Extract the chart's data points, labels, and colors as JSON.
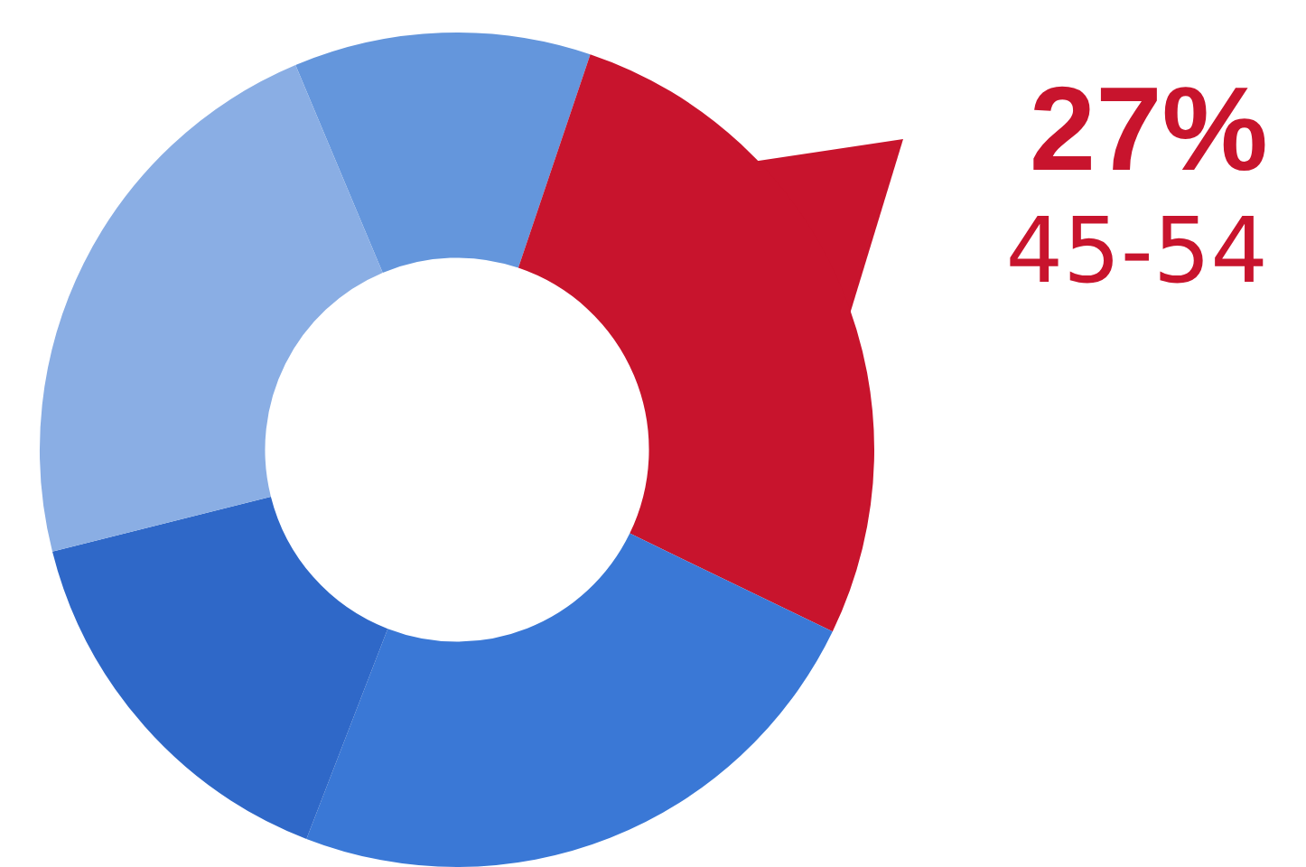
{
  "chart_data": {
    "type": "donut",
    "categories": [
      null,
      "45-54",
      null,
      null,
      null
    ],
    "values": [
      11.5,
      27,
      23.7,
      15.2,
      22.6
    ],
    "colors": [
      "#6496dc",
      "#c8142d",
      "#3a78d6",
      "#2f68c8",
      "#8aaee4"
    ],
    "value_labels": [
      null,
      "27%",
      null,
      null,
      null
    ],
    "legend": false
  }
}
